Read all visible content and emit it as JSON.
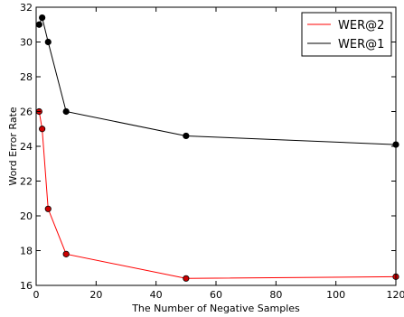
{
  "chart_data": {
    "type": "line",
    "title": "",
    "xlabel": "The Number of Negative Samples",
    "ylabel": "Word Error Rate",
    "xlim": [
      0,
      120
    ],
    "ylim": [
      16,
      32
    ],
    "xticks": [
      0,
      20,
      40,
      60,
      80,
      100,
      120
    ],
    "yticks": [
      16,
      18,
      20,
      22,
      24,
      26,
      28,
      30,
      32
    ],
    "xtick_labels": [
      "0",
      "20",
      "40",
      "60",
      "80",
      "100",
      "120"
    ],
    "ytick_labels": [
      "16",
      "18",
      "20",
      "22",
      "24",
      "26",
      "28",
      "30",
      "32"
    ],
    "grid": false,
    "legend_position": "top-right",
    "series": [
      {
        "name": "WER@2",
        "color": "#ff0000",
        "marker_color": "#cc0000",
        "x": [
          1,
          2,
          4,
          10,
          50,
          120
        ],
        "y": [
          26.0,
          25.0,
          20.4,
          17.8,
          16.4,
          16.5
        ]
      },
      {
        "name": "WER@1",
        "color": "#000000",
        "marker_color": "#000000",
        "x": [
          1,
          2,
          4,
          10,
          50,
          120
        ],
        "y": [
          31.0,
          31.4,
          30.0,
          26.0,
          24.6,
          24.1
        ]
      }
    ]
  }
}
